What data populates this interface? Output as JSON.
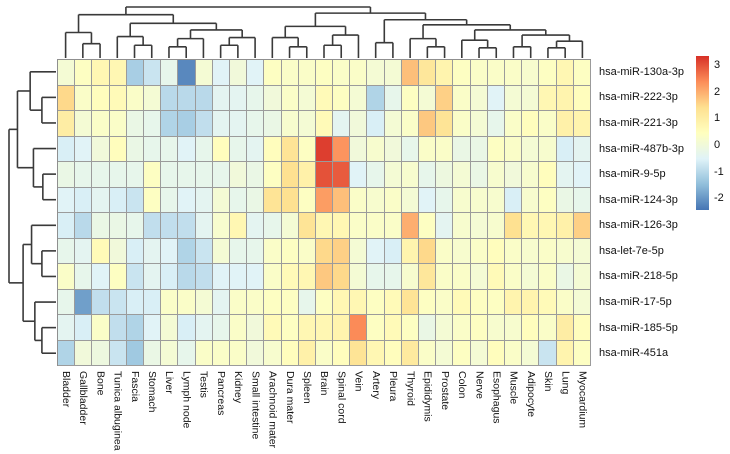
{
  "figure": {
    "background": "#ffffff"
  },
  "chart_data": {
    "type": "heatmap",
    "title": "",
    "xlabel": "",
    "ylabel": "",
    "legend_position": "right",
    "grid": true,
    "grid_line_color": "#9b9b9b",
    "dendrogram_line_color": "#3a3a3a",
    "rows": [
      "hsa-miR-130a-3p",
      "hsa-miR-222-3p",
      "hsa-miR-221-3p",
      "hsa-miR-487b-3p",
      "hsa-miR-9-5p",
      "hsa-miR-124-3p",
      "hsa-miR-126-3p",
      "hsa-let-7e-5p",
      "hsa-miR-218-5p",
      "hsa-miR-17-5p",
      "hsa-miR-185-5p",
      "hsa-miR-451a"
    ],
    "columns": [
      "Bladder",
      "Gallbladder",
      "Bone",
      "Tunica albuginea",
      "Fascia",
      "Stomach",
      "Liver",
      "Lymph node",
      "Testis",
      "Pancreas",
      "Kidney",
      "Small intestine",
      "Arachnoid mater",
      "Dura mater",
      "Spleen",
      "Brain",
      "Spinal cord",
      "Vein",
      "Artery",
      "Pleura",
      "Thyroid",
      "Epididymis",
      "Prostate",
      "Colon",
      "Nerve",
      "Esophagus",
      "Muscle",
      "Adipocyte",
      "Skin",
      "Lung",
      "Myocardium"
    ],
    "values": [
      [
        0.1,
        0.4,
        0.7,
        0.7,
        -1.2,
        -0.8,
        -0.3,
        -2.2,
        0.1,
        -0.5,
        0,
        -0.5,
        0.4,
        0.3,
        0.3,
        0.4,
        0.3,
        0.3,
        0.1,
        0.1,
        1.8,
        1.2,
        0.8,
        0.4,
        0.3,
        0.3,
        0.3,
        0.2,
        0.4,
        0.7,
        0.4
      ],
      [
        1.5,
        0.3,
        0.5,
        0.6,
        0.3,
        0.1,
        -1,
        -1,
        -1,
        -0.4,
        -0.4,
        -0.3,
        0,
        0.3,
        0.1,
        0.6,
        0.4,
        0.1,
        -1.1,
        -0.3,
        0.4,
        0.1,
        1.6,
        0.3,
        0.1,
        -0.5,
        0.1,
        0.1,
        0.7,
        0.8,
        0.5
      ],
      [
        1,
        0.1,
        0.3,
        0.3,
        -0.2,
        -0.3,
        -1.1,
        -1.2,
        -0.9,
        -0.4,
        -0.4,
        -0.3,
        -0.2,
        0.2,
        0.1,
        0.6,
        -0.4,
        0,
        -0.6,
        0.1,
        0.3,
        1.7,
        1.3,
        0.3,
        0.1,
        -0.3,
        0.3,
        0.5,
        0.3,
        0.9,
        0.8
      ],
      [
        -0.6,
        -0.5,
        0,
        0.5,
        -0.2,
        -0.3,
        -0.3,
        -0.5,
        -0.3,
        0.5,
        -0.3,
        -0.4,
        0.5,
        1.3,
        0.4,
        3.2,
        2.3,
        0,
        0.2,
        0,
        -0.3,
        0.3,
        0.3,
        -0.2,
        -0.2,
        0.4,
        0.3,
        0.1,
        0.2,
        -0.6,
        -0.4
      ],
      [
        -0.2,
        -0.3,
        -0.3,
        -0.3,
        -0.3,
        0.4,
        -0.3,
        -0.3,
        -0.3,
        -0.3,
        0,
        -0.2,
        0.4,
        1.4,
        0.9,
        3,
        2.9,
        -0.5,
        -0.3,
        0.1,
        0.2,
        -0.3,
        -0.1,
        0.1,
        -0.2,
        0.2,
        0,
        0.2,
        0.5,
        -0.4,
        -0.5
      ],
      [
        -0.5,
        -0.6,
        -0.4,
        -0.6,
        -0.8,
        0.4,
        -0.3,
        -0.5,
        -0.4,
        0.1,
        -0.3,
        -0.2,
        1.3,
        1.4,
        0.4,
        2.2,
        1.8,
        0.3,
        0.2,
        0.3,
        0.1,
        -0.5,
        -0.3,
        0.2,
        0.2,
        0.2,
        -0.6,
        0.2,
        0.4,
        -0.2,
        -0.3
      ],
      [
        -0.6,
        -1,
        -0.2,
        -0.2,
        -0.3,
        -0.9,
        -0.9,
        -0.9,
        -0.4,
        0.2,
        0.7,
        -0.4,
        -0.3,
        0.1,
        1.3,
        0.7,
        0.7,
        0.3,
        0.3,
        0.3,
        2,
        0.4,
        -0.4,
        0.2,
        0.1,
        0.2,
        1.4,
        0.7,
        0.7,
        0.9,
        1.6
      ],
      [
        -0.3,
        -0.4,
        0.6,
        0,
        -0.6,
        -0.4,
        -0.5,
        -1.1,
        -0.8,
        0.1,
        -0.3,
        -0.3,
        0.3,
        0.4,
        0.3,
        1.5,
        1.6,
        0.1,
        -0.5,
        -0.6,
        0.8,
        1.5,
        0.3,
        0.2,
        0.3,
        0.5,
        0.3,
        0.2,
        0.3,
        0.2,
        0.1
      ],
      [
        0.3,
        -0.3,
        -0.5,
        0.4,
        -0.8,
        -0.4,
        -0.6,
        -1,
        -0.9,
        -0.5,
        -0.5,
        -0.5,
        0.3,
        0.6,
        0.7,
        1.7,
        1.5,
        0.1,
        -0.3,
        -0.3,
        0.2,
        1.2,
        0.3,
        0.3,
        0.1,
        0.6,
        0.3,
        0.1,
        0.3,
        -0.2,
        0.1
      ],
      [
        -0.3,
        -1.9,
        -0.9,
        -0.8,
        -0.6,
        -0.6,
        0.3,
        0.3,
        0.1,
        -0.4,
        0.3,
        0.3,
        0.4,
        0.4,
        -0.3,
        0.4,
        0.7,
        0.7,
        0.4,
        0.6,
        1.3,
        0.4,
        0.3,
        0.6,
        0.4,
        0.4,
        0.8,
        0.8,
        0.6,
        0.3,
        0.1
      ],
      [
        -0.4,
        -0.6,
        0.3,
        -0.9,
        -1.1,
        -0.5,
        0.1,
        -0.6,
        -0.4,
        -0.3,
        0.3,
        0,
        0.6,
        0.4,
        0.7,
        0.7,
        0.8,
        2.4,
        0.4,
        0.6,
        0.4,
        -0.2,
        0.1,
        0.3,
        0.4,
        0.2,
        0.2,
        0.5,
        0.3,
        1,
        0.5
      ],
      [
        -1.1,
        0,
        -0.1,
        -0.8,
        -1.3,
        -0.2,
        0.1,
        -0.3,
        0.3,
        0.3,
        0.3,
        0,
        0.2,
        0.5,
        0.9,
        0.3,
        0.5,
        1.3,
        0.7,
        0.5,
        1.1,
        0.3,
        0.1,
        0.4,
        0.1,
        0.5,
        0.3,
        0.1,
        -0.8,
        0.8,
        0.4
      ]
    ],
    "color_domain": [
      -2.45,
      3.35
    ],
    "color_stops": [
      "#4575b4",
      "#91bfdb",
      "#e0f3f8",
      "#ffffbf",
      "#fee090",
      "#fc8d59",
      "#d73027"
    ],
    "colorbar_ticks": [
      3,
      2,
      1,
      0,
      -1,
      -2
    ],
    "column_dendrogram": {
      "h": 1,
      "c": [
        {
          "h": 0.85,
          "c": [
            {
              "h": 0.5,
              "c": [
                1,
                {
                  "h": 0.28,
                  "c": [
                    2,
                    3
                  ]
                }
              ]
            },
            {
              "h": 0.68,
              "c": [
                {
                  "h": 0.42,
                  "c": [
                    4,
                    {
                      "h": 0.25,
                      "c": [
                        5,
                        6
                      ]
                    }
                  ]
                },
                {
                  "h": 0.55,
                  "c": [
                    {
                      "h": 0.38,
                      "c": [
                        {
                          "h": 0.22,
                          "c": [
                            7,
                            8
                          ]
                        },
                        9
                      ]
                    },
                    {
                      "h": 0.4,
                      "c": [
                        {
                          "h": 0.25,
                          "c": [
                            10,
                            11
                          ]
                        },
                        12
                      ]
                    }
                  ]
                }
              ]
            }
          ]
        },
        {
          "h": 0.88,
          "c": [
            {
              "h": 0.62,
              "c": [
                {
                  "h": 0.4,
                  "c": [
                    13,
                    {
                      "h": 0.22,
                      "c": [
                        14,
                        15
                      ]
                    }
                  ]
                },
                {
                  "h": 0.45,
                  "c": [
                    {
                      "h": 0.25,
                      "c": [
                        16,
                        17
                      ]
                    },
                    18
                  ]
                }
              ]
            },
            {
              "h": 0.75,
              "c": [
                {
                  "h": 0.3,
                  "c": [
                    19,
                    20
                  ]
                },
                {
                  "h": 0.65,
                  "c": [
                    {
                      "h": 0.38,
                      "c": [
                        21,
                        {
                          "h": 0.22,
                          "c": [
                            22,
                            23
                          ]
                        }
                      ]
                    },
                    {
                      "h": 0.55,
                      "c": [
                        {
                          "h": 0.35,
                          "c": [
                            24,
                            {
                              "h": 0.2,
                              "c": [
                                25,
                                26
                              ]
                            }
                          ]
                        },
                        {
                          "h": 0.45,
                          "c": [
                            {
                              "h": 0.22,
                              "c": [
                                27,
                                28
                              ]
                            },
                            {
                              "h": 0.33,
                              "c": [
                                {
                                  "h": 0.2,
                                  "c": [
                                    29,
                                    30
                                  ]
                                },
                                31
                              ]
                            }
                          ]
                        }
                      ]
                    }
                  ]
                }
              ]
            }
          ]
        }
      ]
    },
    "row_dendrogram": {
      "h": 1,
      "c": [
        {
          "h": 0.82,
          "c": [
            {
              "h": 0.55,
              "c": [
                1,
                {
                  "h": 0.3,
                  "c": [
                    2,
                    3
                  ]
                }
              ]
            },
            {
              "h": 0.48,
              "c": [
                4,
                {
                  "h": 0.28,
                  "c": [
                    5,
                    6
                  ]
                }
              ]
            }
          ]
        },
        {
          "h": 0.7,
          "c": [
            {
              "h": 0.52,
              "c": [
                7,
                {
                  "h": 0.3,
                  "c": [
                    8,
                    9
                  ]
                }
              ]
            },
            {
              "h": 0.45,
              "c": [
                10,
                {
                  "h": 0.3,
                  "c": [
                    11,
                    12
                  ]
                }
              ]
            }
          ]
        }
      ]
    }
  }
}
